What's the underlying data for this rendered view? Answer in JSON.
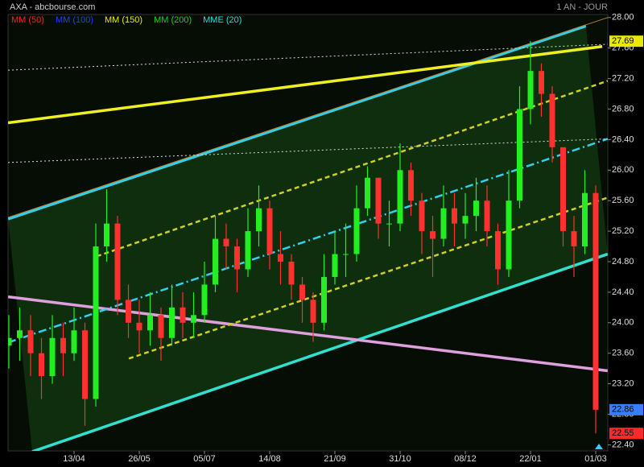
{
  "header": {
    "title": "AXA - abcbourse.com",
    "period": "1 AN - JOUR"
  },
  "chart_data": {
    "type": "candlestick",
    "indicators": [
      {
        "name": "MM (50)",
        "color": "#ff2020"
      },
      {
        "name": "MM (100)",
        "color": "#2040ff"
      },
      {
        "name": "MM (150)",
        "color": "#e8e800"
      },
      {
        "name": "MM (200)",
        "color": "#20d020"
      },
      {
        "name": "MME (20)",
        "color": "#20e0e0"
      }
    ],
    "categories": [
      null,
      null,
      null,
      null,
      null,
      null,
      "13/04",
      null,
      null,
      null,
      null,
      null,
      "26/05",
      null,
      null,
      null,
      null,
      null,
      "05/07",
      null,
      null,
      null,
      null,
      null,
      "14/08",
      null,
      null,
      null,
      null,
      null,
      "21/09",
      null,
      null,
      null,
      null,
      null,
      "31/10",
      null,
      null,
      null,
      null,
      null,
      "08/12",
      null,
      null,
      null,
      null,
      null,
      "22/01",
      null,
      null,
      null,
      null,
      null,
      "01/03"
    ],
    "open": [
      23.7,
      23.8,
      23.9,
      23.6,
      23.3,
      23.8,
      23.6,
      23.9,
      23.0,
      25.0,
      25.3,
      24.3,
      24.0,
      23.9,
      24.1,
      23.8,
      24.2,
      24.0,
      24.1,
      24.5,
      25.1,
      25.0,
      24.7,
      25.2,
      25.5,
      24.9,
      24.8,
      24.5,
      24.3,
      24.0,
      24.6,
      24.9,
      24.9,
      25.5,
      25.9,
      25.3,
      25.3,
      26.0,
      25.6,
      25.2,
      25.1,
      25.5,
      25.3,
      25.4,
      25.6,
      25.2,
      24.7,
      25.6,
      26.8,
      27.3,
      27.0,
      26.3,
      25.2,
      25.0,
      25.7
    ],
    "high": [
      24.1,
      24.2,
      24.1,
      23.8,
      24.1,
      24.0,
      24.2,
      24.0,
      25.3,
      25.75,
      25.4,
      24.5,
      24.3,
      24.4,
      24.2,
      24.5,
      24.4,
      24.4,
      24.8,
      25.4,
      25.3,
      25.1,
      25.5,
      25.8,
      25.6,
      25.2,
      24.9,
      24.6,
      24.4,
      24.9,
      25.2,
      25.3,
      25.8,
      26.05,
      25.9,
      25.6,
      26.35,
      26.1,
      25.7,
      25.4,
      25.8,
      25.7,
      25.7,
      25.9,
      25.8,
      25.3,
      26.0,
      27.1,
      27.69,
      27.4,
      27.1,
      26.3,
      25.4,
      26.0,
      25.8
    ],
    "low": [
      23.4,
      23.5,
      23.3,
      23.0,
      23.2,
      23.3,
      23.5,
      22.65,
      22.9,
      24.8,
      24.1,
      23.8,
      23.6,
      23.7,
      23.5,
      23.7,
      23.8,
      23.8,
      24.0,
      24.4,
      24.7,
      24.4,
      24.6,
      25.0,
      24.7,
      24.5,
      24.3,
      24.0,
      23.75,
      23.9,
      24.5,
      24.6,
      24.8,
      25.4,
      25.1,
      25.0,
      25.2,
      25.4,
      24.9,
      24.6,
      25.0,
      25.0,
      25.1,
      25.2,
      25.0,
      24.5,
      24.6,
      25.5,
      26.6,
      26.7,
      26.1,
      25.0,
      24.6,
      24.9,
      22.55
    ],
    "close": [
      23.8,
      23.9,
      23.6,
      23.3,
      23.8,
      23.6,
      23.9,
      23.0,
      25.0,
      25.3,
      24.3,
      24.0,
      23.9,
      24.1,
      23.8,
      24.2,
      24.0,
      24.1,
      24.5,
      25.1,
      25.0,
      24.7,
      25.2,
      25.5,
      24.9,
      24.8,
      24.5,
      24.3,
      24.0,
      24.6,
      24.9,
      24.9,
      25.5,
      25.9,
      25.3,
      25.3,
      26.0,
      25.6,
      25.2,
      25.1,
      25.5,
      25.3,
      25.4,
      25.6,
      25.2,
      24.7,
      25.6,
      26.8,
      27.3,
      27.0,
      26.3,
      25.2,
      25.0,
      25.7,
      22.86
    ],
    "up_color": "#22ee22",
    "down_color": "#ff3030",
    "ylim": [
      22.32,
      28.04
    ],
    "yticks": [
      {
        "value": 28.0,
        "label": "28.00"
      },
      {
        "value": 27.6,
        "label": "27.60"
      },
      {
        "value": 27.2,
        "label": "27.20"
      },
      {
        "value": 26.8,
        "label": "26.80"
      },
      {
        "value": 26.4,
        "label": "26.40"
      },
      {
        "value": 26.0,
        "label": "26.00"
      },
      {
        "value": 25.6,
        "label": "25.60"
      },
      {
        "value": 25.2,
        "label": "25.20"
      },
      {
        "value": 24.8,
        "label": "24.80"
      },
      {
        "value": 24.4,
        "label": "24.40"
      },
      {
        "value": 24.0,
        "label": "24.00"
      },
      {
        "value": 23.6,
        "label": "23.60"
      },
      {
        "value": 23.2,
        "label": "23.20"
      },
      {
        "value": 22.8,
        "label": "22.80"
      },
      {
        "value": 22.4,
        "label": "22.40"
      }
    ],
    "price_flags": [
      {
        "value": 27.69,
        "color": "#e8e800"
      },
      {
        "value": 22.86,
        "color": "#3a7cff"
      },
      {
        "value": 22.55,
        "color": "#ff2a2a"
      }
    ],
    "trendlines": [
      {
        "from": [
          -0.07,
          25.36
        ],
        "to": [
          53.1,
          27.89
        ],
        "color": "#30d0f0",
        "style": "thick"
      },
      {
        "from": [
          2.15,
          22.31
        ],
        "to": [
          55.1,
          24.9
        ],
        "color": "#30e0d0",
        "style": "thick"
      },
      {
        "from": [
          -0.07,
          25.38
        ],
        "to": [
          55.1,
          28.0
        ],
        "color": "#c08020",
        "style": "thin"
      },
      {
        "from": [
          -0.07,
          26.62
        ],
        "to": [
          54.6,
          27.62
        ],
        "color": "#f0f020",
        "style": "thick"
      },
      {
        "from": [
          -0.07,
          24.34
        ],
        "to": [
          55.1,
          23.37
        ],
        "color": "#e0a0e0",
        "style": "thick"
      },
      {
        "from": [
          -0.07,
          23.74
        ],
        "to": [
          55.1,
          26.41
        ],
        "color": "#30d0f0",
        "style": "dashdot"
      },
      {
        "from": [
          8.07,
          24.87
        ],
        "to": [
          55.1,
          27.17
        ],
        "color": "#d0d020",
        "style": "dashed"
      },
      {
        "from": [
          11.04,
          23.53
        ],
        "to": [
          55.1,
          25.64
        ],
        "color": "#d0d020",
        "style": "dashed"
      },
      {
        "from": [
          -0.07,
          27.31
        ],
        "to": [
          55.1,
          27.65
        ],
        "color": "#dddddd",
        "style": "dotted"
      },
      {
        "from": [
          -0.07,
          26.1
        ],
        "to": [
          55.1,
          26.41
        ],
        "color": "#dddddd",
        "style": "dotted"
      }
    ]
  }
}
